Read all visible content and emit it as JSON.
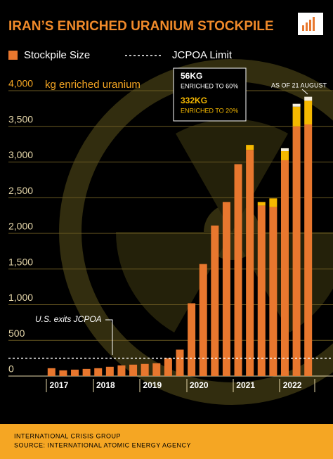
{
  "chart_data": {
    "type": "bar",
    "title": "IRAN’S ENRICHED URANIUM STOCKPILE",
    "y_label": "kg enriched uranium",
    "categories": [
      null,
      "2017",
      null,
      null,
      null,
      "2018",
      null,
      null,
      null,
      "2019",
      null,
      null,
      null,
      "2020",
      null,
      null,
      null,
      "2021",
      null,
      null,
      null,
      "2022",
      null
    ],
    "series": [
      {
        "name": "Stockpile Size",
        "color": "#e8772e",
        "values": [
          110,
          80,
          90,
          100,
          110,
          130,
          150,
          160,
          170,
          180,
          250,
          370,
          1020,
          1570,
          2110,
          2440,
          2970,
          3170,
          2390,
          2370,
          3025,
          3500,
          3527
        ]
      },
      {
        "name": "ENRICHED TO 20%",
        "color": "#f5b800",
        "values": [
          null,
          null,
          null,
          null,
          null,
          null,
          null,
          null,
          null,
          null,
          null,
          null,
          null,
          null,
          null,
          null,
          null,
          70,
          50,
          120,
          128,
          276,
          332
        ],
        "value_labels": [
          null,
          null,
          null,
          null,
          null,
          null,
          null,
          null,
          null,
          null,
          null,
          null,
          null,
          null,
          null,
          null,
          null,
          null,
          null,
          null,
          null,
          null,
          "332KG"
        ]
      },
      {
        "name": "ENRICHED TO 60%",
        "color": "#f4efe0",
        "values": [
          null,
          null,
          null,
          null,
          null,
          null,
          null,
          null,
          null,
          null,
          null,
          null,
          null,
          null,
          null,
          null,
          null,
          null,
          null,
          null,
          40,
          40,
          56
        ],
        "value_labels": [
          null,
          null,
          null,
          null,
          null,
          null,
          null,
          null,
          null,
          null,
          null,
          null,
          null,
          null,
          null,
          null,
          null,
          null,
          null,
          null,
          null,
          null,
          "56KG"
        ]
      }
    ],
    "ylim": [
      0,
      4000
    ],
    "yticks": [
      0,
      500,
      {
        "value": 1000,
        "label": "1,000"
      },
      {
        "value": 1500,
        "label": "1,500"
      },
      {
        "value": 2000,
        "label": "2,000"
      },
      {
        "value": 2500,
        "label": "2,500"
      },
      {
        "value": 3000,
        "label": "3,000"
      },
      {
        "value": 3500,
        "label": "3,500"
      },
      {
        "value": 4000,
        "label": "4,000"
      }
    ],
    "grid": true,
    "jcpoa_limit": 250,
    "jcpoa_label": "JCPOA Limit",
    "annotations": [
      "U.S. exits JCPOA",
      "AS OF 21 AUGUST"
    ]
  },
  "footer": [
    "INTERNATIONAL CRISIS GROUP",
    "SOURCE: INTERNATIONAL ATOMIC ENERGY AGENCY"
  ]
}
